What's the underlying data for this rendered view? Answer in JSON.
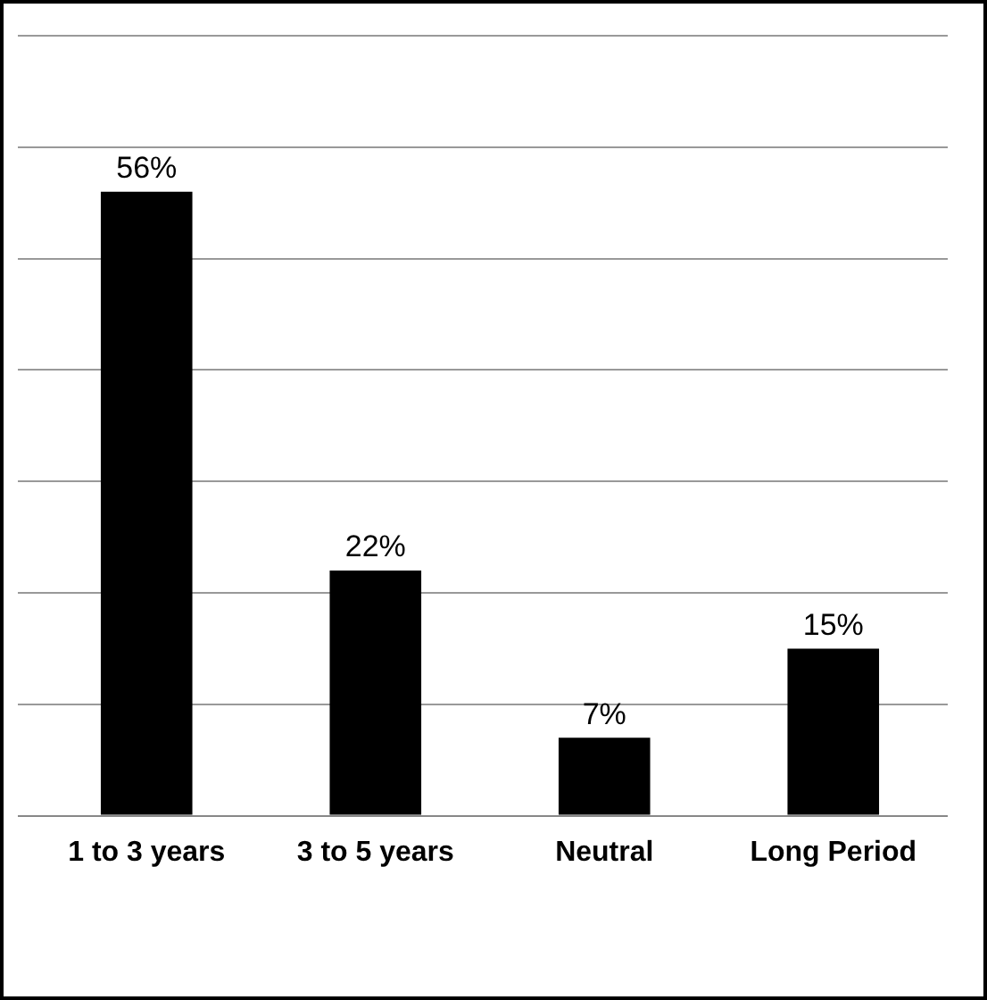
{
  "chart_data": {
    "type": "bar",
    "categories": [
      "1 to 3 years",
      "3 to 5 years",
      "Neutral",
      "Long Period"
    ],
    "values": [
      56,
      22,
      7,
      15
    ],
    "value_labels": [
      "56%",
      "22%",
      "7%",
      "15%"
    ],
    "color": "#000000",
    "ylim": [
      0,
      70
    ],
    "yticks": [
      {
        "value": 0,
        "label": null
      },
      {
        "value": 10,
        "label": null
      },
      {
        "value": 20,
        "label": null
      },
      {
        "value": 30,
        "label": null
      },
      {
        "value": 40,
        "label": null
      },
      {
        "value": 50,
        "label": null
      },
      {
        "value": 60,
        "label": null
      },
      {
        "value": 70,
        "label": null
      }
    ],
    "grid": "y",
    "legend": false,
    "tick_labels": "x"
  }
}
